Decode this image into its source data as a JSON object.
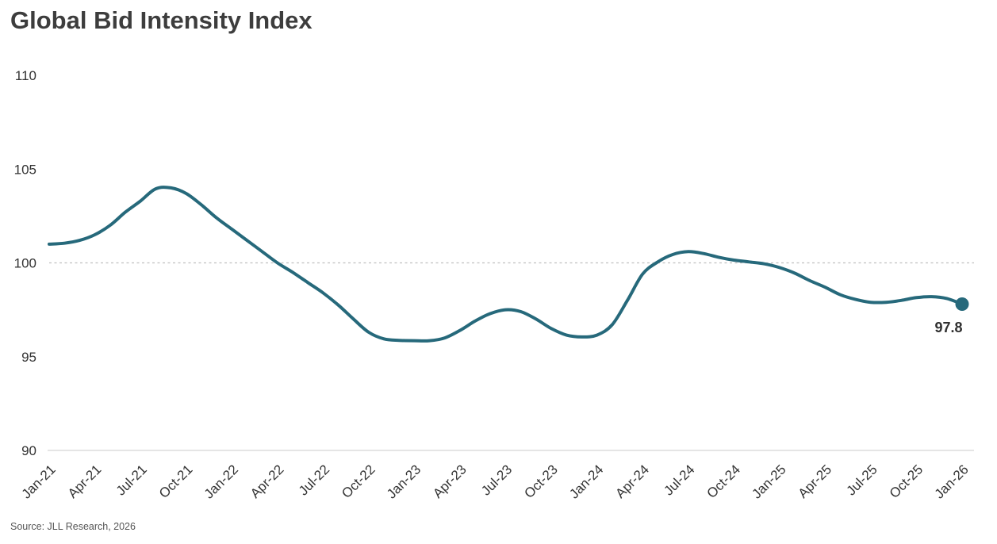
{
  "page": {
    "source_note": "Source: JLL Research, 2026"
  },
  "chart_data": {
    "type": "line",
    "title": "Global Bid Intensity Index",
    "xlabel": "",
    "ylabel": "",
    "categories": [
      "Jan-21",
      "Apr-21",
      "Jul-21",
      "Oct-21",
      "Jan-22",
      "Apr-22",
      "Jul-22",
      "Oct-22",
      "Jan-23",
      "Apr-23",
      "Jul-23",
      "Oct-23",
      "Jan-24",
      "Apr-24",
      "Jul-24",
      "Oct-24",
      "Jan-25",
      "Apr-25",
      "Jul-25",
      "Oct-25",
      "Jan-26"
    ],
    "values": [
      101.0,
      101.5,
      103.3,
      103.7,
      101.8,
      100.0,
      98.4,
      96.3,
      95.9,
      96.4,
      97.5,
      96.5,
      96.2,
      99.4,
      100.6,
      100.2,
      99.8,
      98.7,
      97.9,
      98.2,
      97.8
    ],
    "monthly_curve": [
      101.0,
      101.05,
      101.2,
      101.5,
      102.0,
      102.7,
      103.3,
      103.95,
      104.0,
      103.7,
      103.1,
      102.4,
      101.8,
      101.2,
      100.6,
      100.0,
      99.5,
      98.95,
      98.4,
      97.75,
      97.0,
      96.3,
      95.95,
      95.87,
      95.85,
      95.85,
      96.0,
      96.4,
      96.9,
      97.3,
      97.5,
      97.4,
      97.0,
      96.5,
      96.15,
      96.05,
      96.15,
      96.7,
      98.0,
      99.4,
      100.05,
      100.45,
      100.6,
      100.5,
      100.3,
      100.15,
      100.05,
      99.95,
      99.75,
      99.45,
      99.05,
      98.7,
      98.3,
      98.05,
      97.9,
      97.9,
      98.0,
      98.15,
      98.2,
      98.1,
      97.8
    ],
    "yticks": [
      90,
      95,
      100,
      105,
      110
    ],
    "ylim": [
      90,
      110
    ],
    "reference_line_y": 100,
    "end_label": "97.8",
    "line_color": "#26697B",
    "marker_color": "#26697B",
    "reference_line_color": "#bfbfbf",
    "baseline_color": "#e5e5e5",
    "legend": "none",
    "grid": "horizontal dotted at 100; solid light baseline at 90"
  }
}
